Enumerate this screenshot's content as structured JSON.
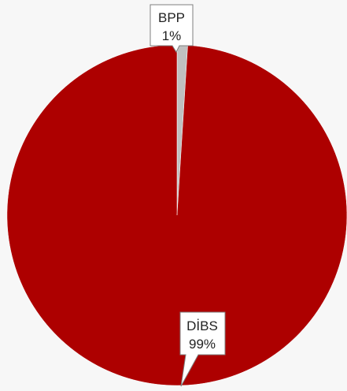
{
  "chart_data": {
    "type": "pie",
    "slices": [
      {
        "label": "BPP",
        "value": 1,
        "value_label": "1%",
        "color": "#c0c0c0"
      },
      {
        "label": "DİBS",
        "value": 99,
        "value_label": "99%",
        "color": "#ad0000"
      }
    ],
    "legend": "none",
    "data_label_style": "callout"
  },
  "background_color": "#f7f7f7",
  "label_box_border_color": "#7f7f7f",
  "label_box_fill": "#ffffff"
}
